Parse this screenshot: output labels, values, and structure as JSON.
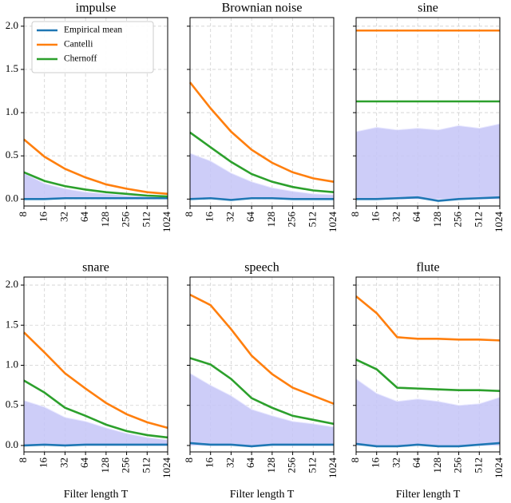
{
  "chart_data": [
    {
      "type": "line",
      "title": "impulse",
      "categories": [
        "8",
        "16",
        "32",
        "64",
        "128",
        "256",
        "512",
        "1024"
      ],
      "series": [
        {
          "name": "Empirical mean",
          "color": "#1f77b4",
          "values": [
            0.0,
            0.0,
            0.01,
            0.01,
            0.01,
            0.01,
            0.01,
            0.01
          ]
        },
        {
          "name": "Cantelli",
          "color": "#ff7f0e",
          "values": [
            0.69,
            0.49,
            0.35,
            0.25,
            0.17,
            0.12,
            0.08,
            0.06
          ]
        },
        {
          "name": "Chernoff",
          "color": "#2ca02c",
          "values": [
            0.31,
            0.21,
            0.15,
            0.11,
            0.08,
            0.06,
            0.04,
            0.03
          ]
        }
      ],
      "band": {
        "color": "#c4c4f7",
        "values": [
          0.3,
          0.18,
          0.12,
          0.08,
          0.06,
          0.04,
          0.03,
          0.02
        ]
      },
      "ylim": [
        -0.08,
        2.1
      ],
      "yticks": [
        {
          "value": 0,
          "label": "0.0"
        },
        {
          "value": 0.5,
          "label": "0.5"
        },
        {
          "value": 1,
          "label": "1.0"
        },
        {
          "value": 1.5,
          "label": "1.5"
        },
        {
          "value": 2,
          "label": "2.0"
        }
      ],
      "grid": true,
      "legend": "upper left"
    },
    {
      "type": "line",
      "title": "Brownian noise",
      "categories": [
        "8",
        "16",
        "32",
        "64",
        "128",
        "256",
        "512",
        "1024"
      ],
      "series": [
        {
          "color": "#1f77b4",
          "values": [
            0.0,
            0.01,
            -0.01,
            0.01,
            0.01,
            0.0,
            0.0,
            0.0
          ]
        },
        {
          "color": "#ff7f0e",
          "values": [
            1.35,
            1.05,
            0.78,
            0.57,
            0.42,
            0.31,
            0.24,
            0.2
          ]
        },
        {
          "color": "#2ca02c",
          "values": [
            0.77,
            0.6,
            0.43,
            0.29,
            0.2,
            0.14,
            0.1,
            0.08
          ]
        }
      ],
      "band": {
        "color": "#c4c4f7",
        "values": [
          0.53,
          0.44,
          0.3,
          0.2,
          0.13,
          0.09,
          0.06,
          0.05
        ]
      },
      "ylim": [
        -0.08,
        2.1
      ],
      "yticks": [
        0,
        0.5,
        1,
        1.5,
        2
      ],
      "grid": true
    },
    {
      "type": "line",
      "title": "sine",
      "categories": [
        "8",
        "16",
        "32",
        "64",
        "128",
        "256",
        "512",
        "1024"
      ],
      "series": [
        {
          "color": "#1f77b4",
          "values": [
            0.0,
            0.0,
            0.01,
            0.02,
            -0.02,
            0.0,
            0.01,
            0.02
          ]
        },
        {
          "color": "#ff7f0e",
          "values": [
            1.95,
            1.95,
            1.95,
            1.95,
            1.95,
            1.95,
            1.95,
            1.95
          ]
        },
        {
          "color": "#2ca02c",
          "values": [
            1.13,
            1.13,
            1.13,
            1.13,
            1.13,
            1.13,
            1.13,
            1.13
          ]
        }
      ],
      "band": {
        "color": "#c4c4f7",
        "values": [
          0.78,
          0.83,
          0.8,
          0.82,
          0.8,
          0.85,
          0.82,
          0.87
        ]
      },
      "ylim": [
        -0.08,
        2.1
      ],
      "yticks": [
        0,
        0.5,
        1,
        1.5,
        2
      ],
      "grid": true
    },
    {
      "type": "line",
      "title": "snare",
      "categories": [
        "8",
        "16",
        "32",
        "64",
        "128",
        "256",
        "512",
        "1024"
      ],
      "series": [
        {
          "color": "#1f77b4",
          "values": [
            0.0,
            0.01,
            0.0,
            0.01,
            0.01,
            0.01,
            0.01,
            0.01
          ]
        },
        {
          "color": "#ff7f0e",
          "values": [
            1.41,
            1.16,
            0.9,
            0.71,
            0.53,
            0.39,
            0.29,
            0.22
          ]
        },
        {
          "color": "#2ca02c",
          "values": [
            0.81,
            0.66,
            0.47,
            0.37,
            0.26,
            0.18,
            0.13,
            0.1
          ]
        }
      ],
      "band": {
        "color": "#c4c4f7",
        "values": [
          0.56,
          0.48,
          0.35,
          0.3,
          0.22,
          0.15,
          0.1,
          0.07
        ]
      },
      "ylim": [
        -0.08,
        2.1
      ],
      "yticks": [
        {
          "value": 0,
          "label": "0.0"
        },
        {
          "value": 0.5,
          "label": "0.5"
        },
        {
          "value": 1,
          "label": "1.0"
        },
        {
          "value": 1.5,
          "label": "1.5"
        },
        {
          "value": 2,
          "label": "2.0"
        }
      ],
      "grid": true,
      "xlabel": "Filter length T"
    },
    {
      "type": "line",
      "title": "speech",
      "categories": [
        "8",
        "16",
        "32",
        "64",
        "128",
        "256",
        "512",
        "1024"
      ],
      "series": [
        {
          "color": "#1f77b4",
          "values": [
            0.03,
            0.01,
            0.01,
            -0.01,
            0.01,
            0.01,
            0.01,
            0.01
          ]
        },
        {
          "color": "#ff7f0e",
          "values": [
            1.88,
            1.75,
            1.45,
            1.12,
            0.89,
            0.72,
            0.62,
            0.52
          ]
        },
        {
          "color": "#2ca02c",
          "values": [
            1.09,
            1.01,
            0.83,
            0.59,
            0.47,
            0.37,
            0.32,
            0.27
          ]
        }
      ],
      "band": {
        "color": "#c4c4f7",
        "values": [
          0.9,
          0.75,
          0.62,
          0.45,
          0.37,
          0.3,
          0.27,
          0.23
        ]
      },
      "ylim": [
        -0.08,
        2.1
      ],
      "yticks": [
        0,
        0.5,
        1,
        1.5,
        2
      ],
      "grid": true,
      "xlabel": "Filter length T"
    },
    {
      "type": "line",
      "title": "flute",
      "categories": [
        "8",
        "16",
        "32",
        "64",
        "128",
        "256",
        "512",
        "1024"
      ],
      "series": [
        {
          "color": "#1f77b4",
          "values": [
            0.02,
            -0.01,
            -0.01,
            0.01,
            -0.01,
            -0.01,
            0.01,
            0.03
          ]
        },
        {
          "color": "#ff7f0e",
          "values": [
            1.86,
            1.65,
            1.35,
            1.33,
            1.33,
            1.32,
            1.32,
            1.31
          ]
        },
        {
          "color": "#2ca02c",
          "values": [
            1.07,
            0.95,
            0.72,
            0.71,
            0.7,
            0.69,
            0.69,
            0.68
          ]
        }
      ],
      "band": {
        "color": "#c4c4f7",
        "values": [
          0.83,
          0.65,
          0.55,
          0.58,
          0.55,
          0.5,
          0.52,
          0.6
        ]
      },
      "ylim": [
        -0.08,
        2.1
      ],
      "yticks": [
        0,
        0.5,
        1,
        1.5,
        2
      ],
      "grid": true,
      "xlabel": "Filter length T"
    }
  ]
}
